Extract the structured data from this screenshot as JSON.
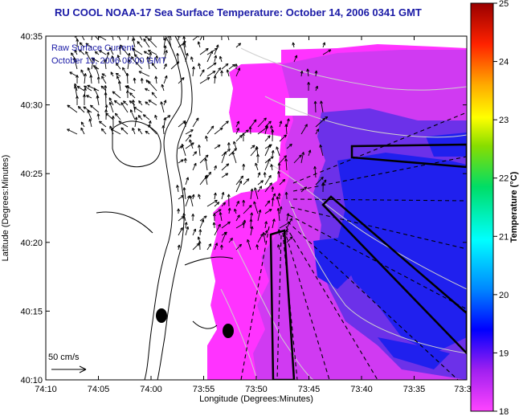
{
  "title": "RU COOL  NOAA-17  Sea Surface Temperature:  October 14, 2006 0341 GMT",
  "inset": {
    "line1": "Raw Surface Current",
    "line2": "October 13, 2006 08:00 GMT"
  },
  "scale_label": "50 cm/s",
  "axes": {
    "xlabel": "Longitude (Degrees:Minutes)",
    "ylabel": "Latitude (Degrees:Minutes)",
    "xticks": [
      "74:10",
      "74:05",
      "74:00",
      "73:55",
      "73:50",
      "73:45",
      "73:40",
      "73:35",
      "73:3"
    ],
    "yticks": [
      "40:35",
      "40:30",
      "40:25",
      "40:20",
      "40:15",
      "40:10"
    ]
  },
  "colorbar": {
    "label": "Temperature (°C)",
    "ticks": [
      "25",
      "24",
      "23",
      "22",
      "21",
      "20",
      "19",
      "18"
    ],
    "min": 18,
    "max": 25
  },
  "colors": {
    "land": "#ffffff",
    "water_warm": "#ff33ff",
    "water_cool": "#2020ee",
    "title": "#1a1aa6"
  }
}
